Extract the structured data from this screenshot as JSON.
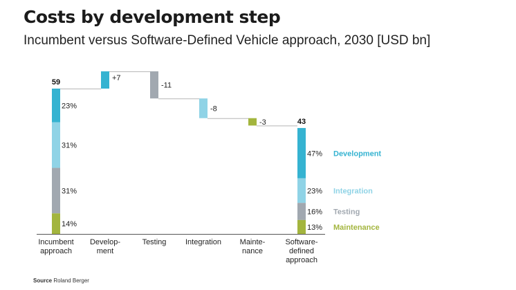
{
  "chart_data": {
    "type": "waterfall",
    "title": "Costs by development step",
    "subtitle": "Incumbent versus Software-Defined Vehicle approach, 2030 [USD bn]",
    "source_label": "Source",
    "source": "Roland Berger",
    "categories": [
      [
        "Incumbent",
        "approach"
      ],
      [
        "Develop-",
        "ment"
      ],
      [
        "Testing"
      ],
      [
        "Integration"
      ],
      [
        "Mainte-",
        "nance"
      ],
      [
        "Software-",
        "defined",
        "approach"
      ]
    ],
    "start_total": 59,
    "end_total": 43,
    "steps": [
      {
        "name": "Development",
        "delta": 7,
        "label": "+7",
        "color_key": "development"
      },
      {
        "name": "Testing",
        "delta": -11,
        "label": "-11",
        "color_key": "testing"
      },
      {
        "name": "Integration",
        "delta": -8,
        "label": "-8",
        "color_key": "integration"
      },
      {
        "name": "Maintenance",
        "delta": -3,
        "label": "-3",
        "color_key": "maintenance"
      }
    ],
    "incumbent_breakdown": [
      {
        "key": "development",
        "share": 23,
        "label": "23%"
      },
      {
        "key": "integration",
        "share": 31,
        "label": "31%"
      },
      {
        "key": "testing",
        "share": 31,
        "label": "31%"
      },
      {
        "key": "maintenance",
        "share": 14,
        "label": "14%"
      }
    ],
    "sdv_breakdown": [
      {
        "key": "development",
        "share": 47,
        "label": "47%"
      },
      {
        "key": "integration",
        "share": 23,
        "label": "23%"
      },
      {
        "key": "testing",
        "share": 16,
        "label": "16%"
      },
      {
        "key": "maintenance",
        "share": 13,
        "label": "13%"
      }
    ],
    "legend": [
      {
        "key": "development",
        "label": "Development"
      },
      {
        "key": "integration",
        "label": "Integration"
      },
      {
        "key": "testing",
        "label": "Testing"
      },
      {
        "key": "maintenance",
        "label": "Maintenance"
      }
    ],
    "colors": {
      "development": "#35b3d1",
      "integration": "#8fd3e6",
      "testing": "#a1a8b0",
      "maintenance": "#a3b53e"
    },
    "ylim": [
      0,
      66
    ],
    "legend_placement": "right"
  }
}
